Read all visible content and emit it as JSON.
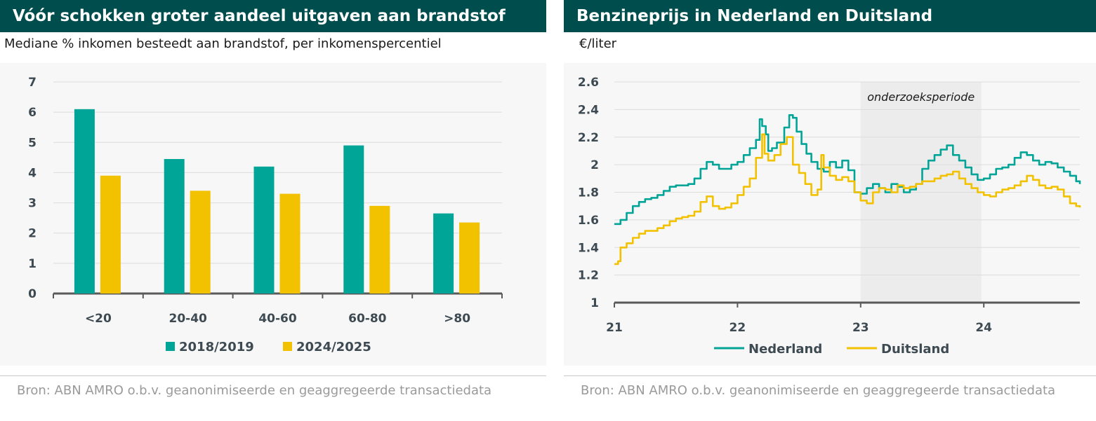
{
  "left": {
    "title": "Vóór schokken groter aandeel uitgaven aan brandstof",
    "subtitle": "Mediane % inkomen besteedt aan brandstof, per inkomenspercentiel",
    "source": "Bron: ABN AMRO o.b.v. geanonimiseerde en geaggregeerde transactiedata"
  },
  "right": {
    "title": "Benzineprijs in Nederland en Duitsland",
    "subtitle": "€/liter",
    "source": "Bron: ABN AMRO o.b.v. geanonimiseerde en geaggregeerde transactiedata"
  },
  "colors": {
    "teal": "#00a597",
    "yellow": "#f2c100",
    "header": "#004d4d",
    "shade": "#ececec"
  },
  "chart_data": [
    {
      "type": "bar",
      "categories": [
        "<20",
        "20-40",
        "40-60",
        "60-80",
        ">80"
      ],
      "series": [
        {
          "name": "2018/2019",
          "values": [
            6.1,
            4.45,
            4.2,
            4.9,
            2.65
          ]
        },
        {
          "name": "2024/2025",
          "values": [
            3.9,
            3.4,
            3.3,
            2.9,
            2.35
          ]
        }
      ],
      "ylim": [
        0,
        7
      ],
      "yticks": [
        "0",
        "1",
        "2",
        "3",
        "4",
        "5",
        "6",
        "7"
      ],
      "grid": true,
      "legend": "bottom"
    },
    {
      "type": "line",
      "xlim": [
        21,
        24.78
      ],
      "xticks": [
        "21",
        "22",
        "23",
        "24"
      ],
      "ylim": [
        1,
        2.6
      ],
      "yticks": [
        "1",
        "1.2",
        "1.4",
        "1.6",
        "1.8",
        "2",
        "2.2",
        "2.4",
        "2.6"
      ],
      "grid": true,
      "legend": "bottom",
      "annotation": {
        "text": "onderzoeksperiode",
        "from": 23.0,
        "to": 23.98
      },
      "series": [
        {
          "name": "Nederland",
          "x": [
            21.0,
            21.05,
            21.1,
            21.15,
            21.2,
            21.25,
            21.3,
            21.35,
            21.4,
            21.45,
            21.5,
            21.55,
            21.6,
            21.65,
            21.7,
            21.75,
            21.8,
            21.85,
            21.9,
            21.95,
            22.0,
            22.05,
            22.1,
            22.15,
            22.18,
            22.2,
            22.23,
            22.25,
            22.28,
            22.32,
            22.38,
            22.42,
            22.45,
            22.48,
            22.52,
            22.56,
            22.6,
            22.65,
            22.7,
            22.75,
            22.8,
            22.85,
            22.9,
            22.95,
            23.0,
            23.05,
            23.1,
            23.15,
            23.2,
            23.25,
            23.3,
            23.35,
            23.4,
            23.45,
            23.5,
            23.55,
            23.6,
            23.65,
            23.7,
            23.75,
            23.8,
            23.85,
            23.9,
            23.95,
            24.0,
            24.05,
            24.1,
            24.15,
            24.2,
            24.25,
            24.3,
            24.35,
            24.4,
            24.45,
            24.5,
            24.55,
            24.6,
            24.65,
            24.7,
            24.75,
            24.78
          ],
          "values": [
            1.57,
            1.6,
            1.65,
            1.7,
            1.73,
            1.75,
            1.76,
            1.78,
            1.81,
            1.84,
            1.85,
            1.85,
            1.86,
            1.9,
            1.97,
            2.02,
            2.0,
            1.97,
            1.97,
            2.0,
            2.02,
            2.07,
            2.12,
            2.18,
            2.33,
            2.28,
            2.22,
            2.1,
            2.12,
            2.16,
            2.27,
            2.36,
            2.34,
            2.24,
            2.15,
            2.08,
            2.02,
            1.97,
            1.95,
            2.02,
            1.98,
            2.03,
            1.96,
            1.8,
            1.79,
            1.83,
            1.86,
            1.83,
            1.8,
            1.86,
            1.84,
            1.8,
            1.82,
            1.86,
            1.97,
            2.03,
            2.07,
            2.11,
            2.14,
            2.07,
            2.03,
            1.98,
            1.93,
            1.89,
            1.9,
            1.93,
            1.97,
            1.98,
            2.0,
            2.05,
            2.09,
            2.07,
            2.03,
            2.0,
            2.02,
            2.01,
            1.98,
            1.95,
            1.92,
            1.88,
            1.86
          ]
        },
        {
          "name": "Duitsland",
          "x": [
            21.0,
            21.03,
            21.05,
            21.1,
            21.15,
            21.2,
            21.25,
            21.3,
            21.35,
            21.4,
            21.45,
            21.5,
            21.55,
            21.6,
            21.65,
            21.7,
            21.75,
            21.8,
            21.85,
            21.9,
            21.95,
            22.0,
            22.05,
            22.1,
            22.15,
            22.2,
            22.22,
            22.25,
            22.3,
            22.35,
            22.4,
            22.45,
            22.5,
            22.55,
            22.6,
            22.65,
            22.68,
            22.7,
            22.75,
            22.8,
            22.85,
            22.9,
            22.95,
            23.0,
            23.05,
            23.1,
            23.15,
            23.2,
            23.25,
            23.3,
            23.35,
            23.4,
            23.45,
            23.5,
            23.55,
            23.6,
            23.65,
            23.7,
            23.75,
            23.8,
            23.85,
            23.9,
            23.95,
            24.0,
            24.05,
            24.1,
            24.15,
            24.2,
            24.25,
            24.3,
            24.35,
            24.4,
            24.45,
            24.5,
            24.55,
            24.6,
            24.65,
            24.7,
            24.75,
            24.78
          ],
          "values": [
            1.28,
            1.3,
            1.4,
            1.43,
            1.47,
            1.5,
            1.52,
            1.52,
            1.54,
            1.56,
            1.59,
            1.61,
            1.62,
            1.63,
            1.66,
            1.73,
            1.77,
            1.7,
            1.68,
            1.69,
            1.72,
            1.78,
            1.84,
            1.9,
            2.05,
            2.22,
            2.08,
            2.03,
            2.07,
            2.15,
            2.2,
            2.0,
            1.94,
            1.86,
            1.78,
            1.82,
            2.07,
            1.98,
            1.92,
            1.89,
            1.91,
            1.88,
            1.8,
            1.74,
            1.72,
            1.8,
            1.83,
            1.82,
            1.8,
            1.85,
            1.83,
            1.84,
            1.86,
            1.88,
            1.88,
            1.9,
            1.92,
            1.93,
            1.95,
            1.9,
            1.86,
            1.83,
            1.8,
            1.78,
            1.77,
            1.8,
            1.82,
            1.83,
            1.85,
            1.88,
            1.92,
            1.89,
            1.85,
            1.83,
            1.84,
            1.82,
            1.77,
            1.72,
            1.7,
            1.69
          ]
        }
      ]
    }
  ]
}
